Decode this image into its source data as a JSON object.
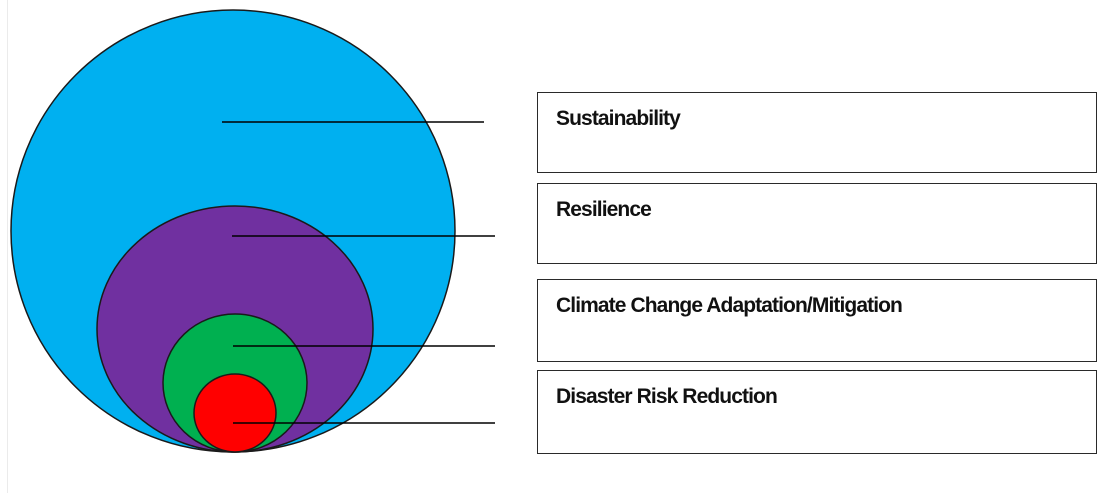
{
  "diagram": {
    "layers": [
      {
        "key": "sustainability",
        "label": "Sustainability",
        "color": "#00b0f0"
      },
      {
        "key": "resilience",
        "label": "Resilience",
        "color": "#7030a0"
      },
      {
        "key": "cca",
        "label": "Climate Change Adaptation/Mitigation",
        "color": "#00b050"
      },
      {
        "key": "drr",
        "label": "Disaster Risk Reduction",
        "color": "#ff0000"
      }
    ]
  }
}
